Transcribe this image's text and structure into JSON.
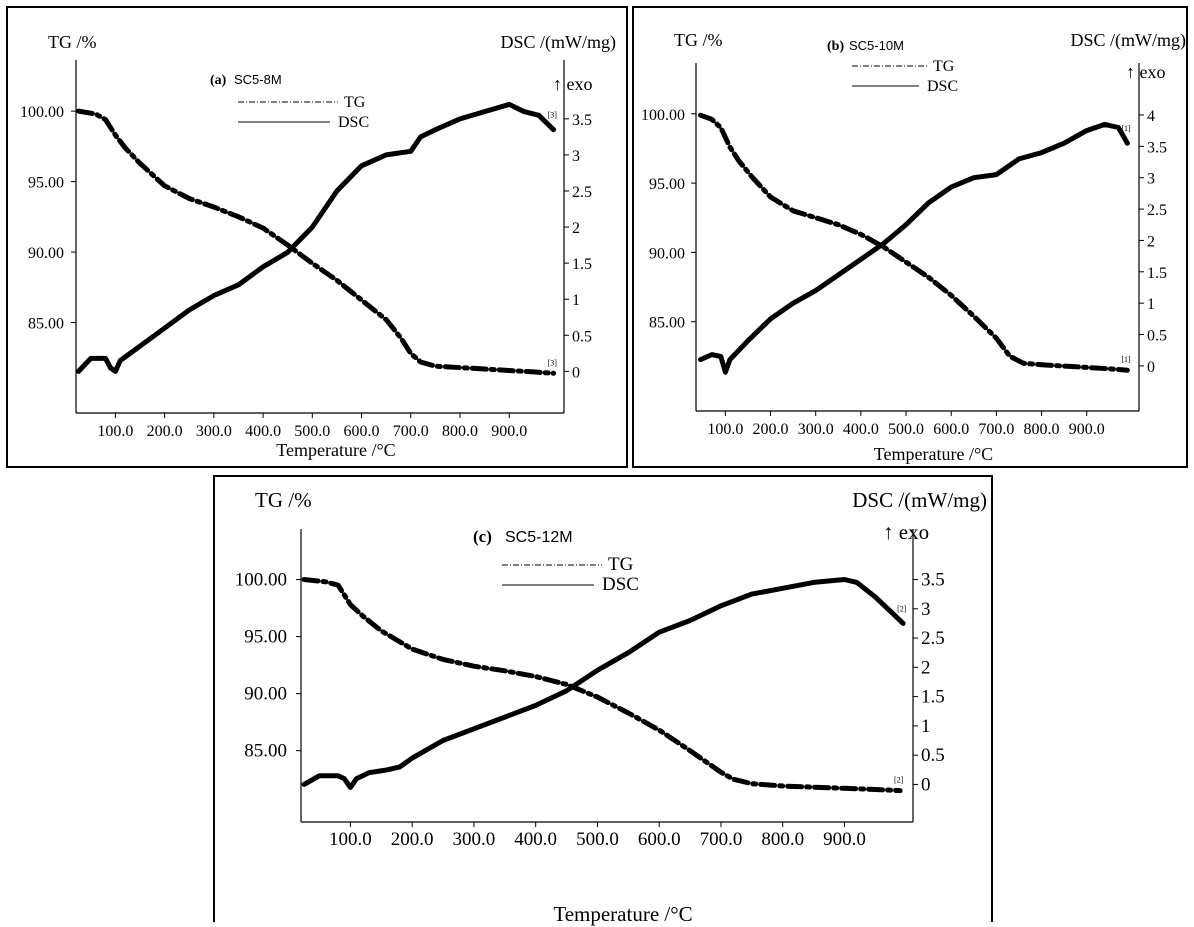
{
  "chart_data": [
    {
      "type": "line",
      "panel": "(a)",
      "sample": "SC5-8M",
      "xlabel": "Temperature /°C",
      "ylabel_left": "TG /%",
      "ylabel_right": "DSC /(mW/mg)",
      "exo_label": "↑ exo",
      "xlim": [
        20,
        995
      ],
      "ylim_left": [
        80.0,
        101.5
      ],
      "ylim_right": [
        -0.3,
        3.9
      ],
      "x_ticks": [
        "100.0",
        "200.0",
        "300.0",
        "400.0",
        "500.0",
        "600.0",
        "700.0",
        "800.0",
        "900.0"
      ],
      "y_left_ticks": [
        "100.00",
        "95.00",
        "90.00",
        "85.00"
      ],
      "y_right_ticks": [
        "3.5",
        "3",
        "2.5",
        "2",
        "1.5",
        "1",
        "0.5",
        "0"
      ],
      "end_marker_tg": "[3]",
      "end_marker_dsc": "[3]",
      "series": [
        {
          "name": "TG",
          "axis": "left",
          "style": "dash-dot",
          "x": [
            25,
            60,
            80,
            100,
            120,
            150,
            200,
            250,
            300,
            350,
            400,
            450,
            500,
            550,
            600,
            650,
            680,
            700,
            720,
            750,
            800,
            850,
            900,
            950,
            990
          ],
          "y": [
            100.0,
            99.8,
            99.4,
            98.3,
            97.4,
            96.3,
            94.7,
            93.8,
            93.2,
            92.5,
            91.7,
            90.5,
            89.2,
            88.0,
            86.6,
            85.2,
            83.9,
            82.8,
            82.2,
            81.9,
            81.8,
            81.7,
            81.6,
            81.5,
            81.4
          ]
        },
        {
          "name": "DSC",
          "axis": "right",
          "style": "solid",
          "x": [
            25,
            50,
            80,
            90,
            100,
            110,
            150,
            200,
            250,
            300,
            350,
            400,
            450,
            500,
            550,
            600,
            650,
            700,
            720,
            750,
            800,
            850,
            900,
            930,
            960,
            990
          ],
          "y": [
            0.0,
            0.18,
            0.18,
            0.05,
            0.0,
            0.15,
            0.35,
            0.6,
            0.85,
            1.05,
            1.2,
            1.45,
            1.65,
            2.0,
            2.5,
            2.85,
            3.0,
            3.05,
            3.25,
            3.35,
            3.5,
            3.6,
            3.7,
            3.6,
            3.55,
            3.35
          ]
        }
      ]
    },
    {
      "type": "line",
      "panel": "(b)",
      "sample": "SC5-10M",
      "xlabel": "Temperature /°C",
      "ylabel_left": "TG /%",
      "ylabel_right": "DSC /(mW/mg)",
      "exo_label": "↑ exo",
      "xlim": [
        35,
        998
      ],
      "ylim_left": [
        80.0,
        101.5
      ],
      "ylim_right": [
        -0.4,
        4.35
      ],
      "x_ticks": [
        "100.0",
        "200.0",
        "300.0",
        "400.0",
        "500.0",
        "600.0",
        "700.0",
        "800.0",
        "900.0"
      ],
      "y_left_ticks": [
        "100.00",
        "95.00",
        "90.00",
        "85.00"
      ],
      "y_right_ticks": [
        "4",
        "3.5",
        "3",
        "2.5",
        "2",
        "1.5",
        "1",
        "0.5",
        "0"
      ],
      "end_marker_tg": "[1]",
      "end_marker_dsc": "[1]",
      "series": [
        {
          "name": "TG",
          "axis": "left",
          "style": "dash-dot",
          "x": [
            45,
            70,
            90,
            110,
            130,
            160,
            200,
            250,
            300,
            350,
            400,
            450,
            500,
            550,
            600,
            650,
            700,
            730,
            760,
            800,
            850,
            900,
            950,
            990
          ],
          "y": [
            99.9,
            99.6,
            99.0,
            97.6,
            96.6,
            95.4,
            94.0,
            93.0,
            92.5,
            92.0,
            91.3,
            90.4,
            89.3,
            88.2,
            86.9,
            85.4,
            83.8,
            82.5,
            82.0,
            81.9,
            81.8,
            81.7,
            81.6,
            81.5
          ]
        },
        {
          "name": "DSC",
          "axis": "right",
          "style": "solid",
          "x": [
            45,
            70,
            90,
            100,
            110,
            150,
            200,
            250,
            300,
            350,
            400,
            450,
            500,
            550,
            600,
            650,
            700,
            750,
            800,
            850,
            900,
            940,
            970,
            990
          ],
          "y": [
            0.1,
            0.18,
            0.15,
            -0.1,
            0.1,
            0.4,
            0.75,
            1.0,
            1.2,
            1.45,
            1.7,
            1.95,
            2.25,
            2.6,
            2.85,
            3.0,
            3.05,
            3.3,
            3.4,
            3.55,
            3.75,
            3.85,
            3.8,
            3.55
          ]
        }
      ]
    },
    {
      "type": "line",
      "panel": "(c)",
      "sample": "SC5-12M",
      "xlabel": "Temperature /°C",
      "ylabel_left": "TG /%",
      "ylabel_right": "DSC /(mW/mg)",
      "exo_label": "↑ exo",
      "xlim": [
        20,
        998
      ],
      "ylim_left": [
        80.5,
        101.8
      ],
      "ylim_right": [
        -0.3,
        3.85
      ],
      "x_ticks": [
        "100.0",
        "200.0",
        "300.0",
        "400.0",
        "500.0",
        "600.0",
        "700.0",
        "800.0",
        "900.0"
      ],
      "y_left_ticks": [
        "100.00",
        "95.00",
        "90.00",
        "85.00"
      ],
      "y_right_ticks": [
        "3.5",
        "3",
        "2.5",
        "2",
        "1.5",
        "1",
        "0.5",
        "0"
      ],
      "end_marker_tg": "[2]",
      "end_marker_dsc": "[2]",
      "series": [
        {
          "name": "TG",
          "axis": "left",
          "style": "dash-dot",
          "x": [
            25,
            60,
            80,
            100,
            120,
            150,
            200,
            250,
            300,
            350,
            400,
            450,
            500,
            550,
            600,
            650,
            700,
            720,
            750,
            800,
            850,
            900,
            950,
            990
          ],
          "y": [
            100.0,
            99.8,
            99.5,
            97.8,
            96.8,
            95.5,
            93.9,
            93.0,
            92.4,
            92.0,
            91.5,
            90.8,
            89.7,
            88.3,
            86.8,
            85.0,
            83.1,
            82.5,
            82.1,
            81.9,
            81.8,
            81.7,
            81.6,
            81.5
          ]
        },
        {
          "name": "DSC",
          "axis": "right",
          "style": "solid",
          "x": [
            25,
            50,
            80,
            90,
            100,
            110,
            130,
            160,
            180,
            200,
            250,
            300,
            350,
            400,
            450,
            500,
            550,
            600,
            650,
            700,
            750,
            800,
            850,
            900,
            920,
            950,
            980,
            995
          ],
          "y": [
            0.0,
            0.15,
            0.15,
            0.1,
            -0.05,
            0.1,
            0.2,
            0.25,
            0.3,
            0.45,
            0.75,
            0.95,
            1.15,
            1.35,
            1.6,
            1.95,
            2.25,
            2.6,
            2.8,
            3.05,
            3.25,
            3.35,
            3.45,
            3.5,
            3.45,
            3.2,
            2.9,
            2.75
          ]
        }
      ]
    }
  ]
}
